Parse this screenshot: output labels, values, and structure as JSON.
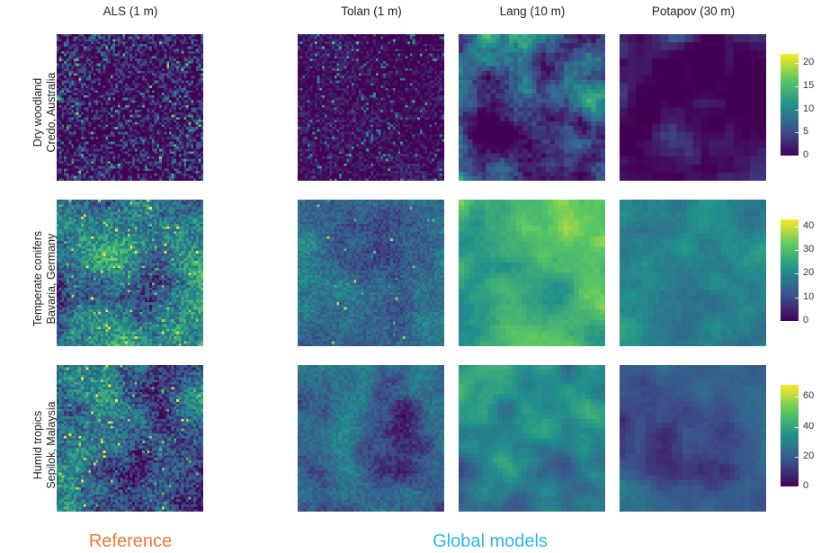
{
  "column_titles": [
    "ALS (1 m)",
    "Tolan (1 m)",
    "Lang (10 m)",
    "Potapov (30 m)"
  ],
  "rows": [
    {
      "line1": "Dry woodland",
      "line2": "Credo, Australia",
      "scale_ticks": [
        "20",
        "15",
        "10",
        "5",
        "0"
      ],
      "max": 22
    },
    {
      "line1": "Temperate conifers",
      "line2": "Bavaria, Germany",
      "scale_ticks": [
        "40",
        "30",
        "20",
        "10",
        "0"
      ],
      "max": 43
    },
    {
      "line1": "Humid tropics",
      "line2": "Sepilok, Malaysia",
      "scale_ticks": [
        "60",
        "40",
        "20",
        "0"
      ],
      "max": 68
    }
  ],
  "group_labels": {
    "reference": "Reference",
    "global": "Global models"
  },
  "colors": {
    "reference": "#ea7a3b",
    "global": "#2bb7e6",
    "colormap": [
      "#440154",
      "#3b528b",
      "#21908d",
      "#5dc962",
      "#fde725"
    ]
  }
}
